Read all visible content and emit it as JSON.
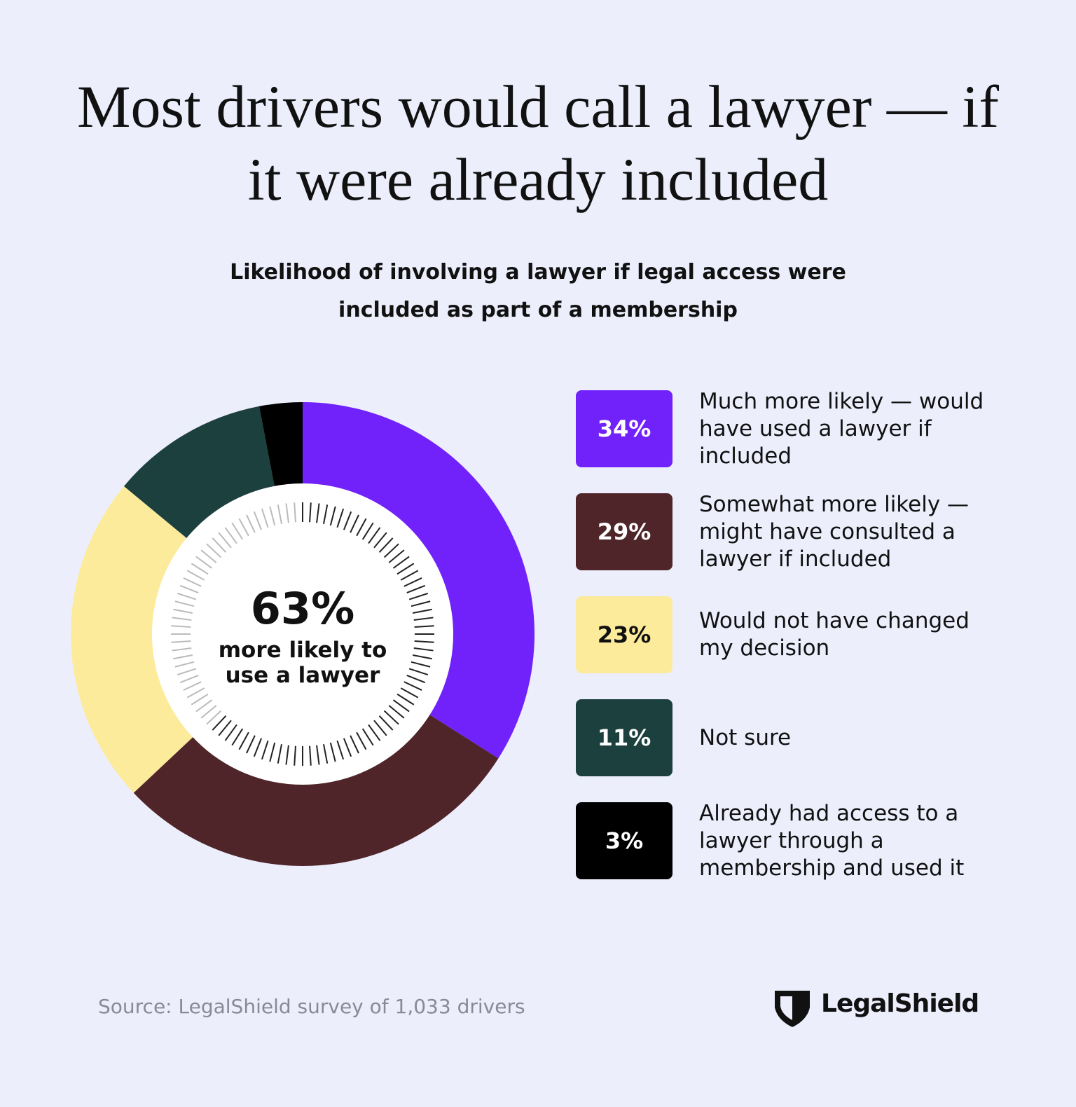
{
  "chart_data": {
    "type": "donut",
    "title": "Most drivers would call a lawyer — if it were already included",
    "subtitle": "Likelihood of involving a lawyer if legal access were included as part of a membership",
    "categories": [
      "Much more likely — would have used a lawyer if included",
      "Somewhat more likely — might have consulted a lawyer if included",
      "Would not have changed my decision",
      "Not sure",
      "Already had access to a lawyer through a membership and used it"
    ],
    "values": [
      34,
      29,
      23,
      11,
      3
    ],
    "value_labels": [
      "34%",
      "29%",
      "23%",
      "11%",
      "3%"
    ],
    "colors": [
      "#7122fa",
      "#4f2529",
      "#fdeb9c",
      "#1c403d",
      "#000000"
    ],
    "center_label": "63%",
    "center_text": "more likely to use a lawyer",
    "source": "Source: LegalShield survey of 1,033 drivers",
    "brand": "LegalShield"
  }
}
